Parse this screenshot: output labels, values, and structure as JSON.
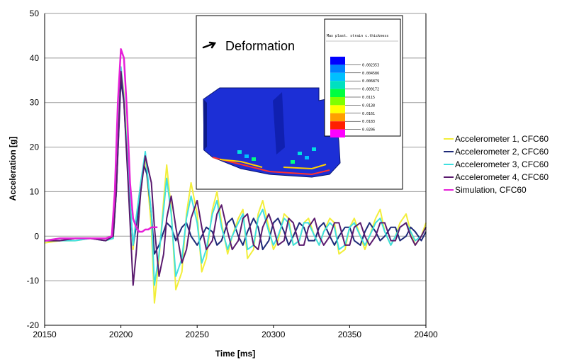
{
  "chart_data": {
    "type": "line",
    "xlabel": "Time [ms]",
    "ylabel": "Acceleration [g]",
    "xlim": [
      20150,
      20400
    ],
    "ylim": [
      -20,
      50
    ],
    "x_ticks": [
      20150,
      20200,
      20250,
      20300,
      20350,
      20400
    ],
    "y_ticks": [
      -20,
      -10,
      0,
      10,
      20,
      30,
      40,
      50
    ],
    "grid": "horizontal",
    "legend_position": "right",
    "series": [
      {
        "name": "Accelerometer 1, CFC60",
        "color": "#f2ee3a",
        "x": [
          20150,
          20160,
          20170,
          20180,
          20190,
          20195,
          20197,
          20200,
          20202,
          20205,
          20208,
          20210,
          20213,
          20216,
          20220,
          20222,
          20225,
          20228,
          20230,
          20233,
          20236,
          20240,
          20243,
          20246,
          20250,
          20253,
          20256,
          20260,
          20263,
          20266,
          20270,
          20273,
          20277,
          20280,
          20283,
          20287,
          20290,
          20293,
          20297,
          20300,
          20303,
          20307,
          20310,
          20313,
          20317,
          20320,
          20323,
          20327,
          20330,
          20333,
          20337,
          20340,
          20343,
          20347,
          20350,
          20353,
          20357,
          20360,
          20363,
          20367,
          20370,
          20373,
          20377,
          20380,
          20383,
          20387,
          20390,
          20393,
          20397,
          20400
        ],
        "y": [
          -1.5,
          -1,
          -1,
          -0.5,
          -1,
          -0.5,
          10,
          38,
          32,
          14,
          -3,
          4,
          12,
          18,
          2,
          -15,
          -5,
          8,
          16,
          6,
          -12,
          -8,
          5,
          12,
          5,
          -8,
          -5,
          6,
          10,
          3,
          -4,
          0,
          4,
          6,
          -5,
          -3,
          5,
          8,
          2,
          -3,
          -1,
          5,
          4,
          -2,
          -1,
          3,
          4,
          0,
          -2,
          1,
          4,
          3,
          -4,
          -3,
          2,
          4,
          0,
          -3,
          0,
          4,
          6,
          1,
          -2,
          0,
          3,
          5,
          1,
          -2,
          0,
          3
        ]
      },
      {
        "name": "Accelerometer 2, CFC60",
        "color": "#1e2a78",
        "x": [
          20150,
          20160,
          20170,
          20180,
          20190,
          20195,
          20197,
          20200,
          20202,
          20205,
          20208,
          20210,
          20213,
          20215,
          20217,
          20220,
          20222,
          20225,
          20228,
          20230,
          20233,
          20236,
          20240,
          20243,
          20246,
          20250,
          20253,
          20256,
          20260,
          20263,
          20266,
          20270,
          20273,
          20277,
          20280,
          20283,
          20287,
          20290,
          20293,
          20297,
          20300,
          20303,
          20307,
          20310,
          20313,
          20317,
          20320,
          20323,
          20327,
          20330,
          20333,
          20337,
          20340,
          20343,
          20347,
          20350,
          20353,
          20357,
          20360,
          20363,
          20367,
          20370,
          20373,
          20377,
          20380,
          20383,
          20387,
          20390,
          20393,
          20397,
          20400
        ],
        "y": [
          -1,
          -1,
          -0.5,
          -0.5,
          -1,
          0,
          10,
          35,
          30,
          12,
          -2,
          2,
          10,
          16,
          14,
          5,
          -4,
          -2,
          1,
          3,
          2,
          -1,
          2,
          3,
          0,
          -2,
          0,
          2,
          1,
          -2,
          -1,
          3,
          4,
          0,
          -2,
          1,
          4,
          2,
          -3,
          -1,
          3,
          4,
          1,
          -2,
          0,
          3,
          2,
          -1,
          -1,
          2,
          3,
          0,
          -2,
          0,
          2,
          2,
          -1,
          -2,
          1,
          3,
          1,
          -1,
          0,
          2,
          2,
          -1,
          0,
          2,
          1,
          -1,
          1
        ]
      },
      {
        "name": "Accelerometer 3, CFC60",
        "color": "#3fe0e0",
        "x": [
          20150,
          20160,
          20170,
          20180,
          20190,
          20195,
          20197,
          20200,
          20202,
          20205,
          20208,
          20210,
          20213,
          20216,
          20220,
          20222,
          20225,
          20228,
          20230,
          20233,
          20236,
          20240,
          20243,
          20246,
          20250,
          20253,
          20256,
          20260,
          20263,
          20266,
          20270,
          20273,
          20277,
          20280,
          20283,
          20287,
          20290,
          20293,
          20297,
          20300,
          20303,
          20307,
          20310,
          20313,
          20317,
          20320,
          20323,
          20327,
          20330,
          20333,
          20337,
          20340,
          20343,
          20347,
          20350,
          20353,
          20357,
          20360,
          20363,
          20367,
          20370,
          20373,
          20377,
          20380,
          20383,
          20387,
          20390,
          20393,
          20397,
          20400
        ],
        "y": [
          -1,
          -1,
          -1,
          -0.5,
          -1,
          -0.5,
          10,
          38,
          31,
          13,
          -2,
          4,
          12,
          19,
          5,
          -11,
          -4,
          6,
          13,
          5,
          -9,
          -5,
          4,
          9,
          3,
          -6,
          -3,
          5,
          8,
          2,
          -3,
          0,
          3,
          5,
          -3,
          -2,
          4,
          6,
          1,
          -2,
          0,
          4,
          3,
          -2,
          -1,
          3,
          3,
          0,
          -2,
          1,
          3,
          2,
          -3,
          -2,
          2,
          3,
          0,
          -2,
          0,
          3,
          4,
          1,
          -2,
          0,
          2,
          3,
          1,
          -1,
          0,
          2
        ]
      },
      {
        "name": "Accelerometer 4, CFC60",
        "color": "#5a1a6e",
        "x": [
          20150,
          20160,
          20170,
          20180,
          20190,
          20195,
          20197,
          20200,
          20202,
          20205,
          20208,
          20210,
          20213,
          20216,
          20220,
          20222,
          20225,
          20228,
          20230,
          20233,
          20236,
          20240,
          20243,
          20246,
          20250,
          20253,
          20256,
          20260,
          20263,
          20266,
          20270,
          20273,
          20277,
          20280,
          20283,
          20287,
          20290,
          20293,
          20297,
          20300,
          20303,
          20307,
          20310,
          20313,
          20317,
          20320,
          20323,
          20327,
          20330,
          20333,
          20337,
          20340,
          20343,
          20347,
          20350,
          20353,
          20357,
          20360,
          20363,
          20367,
          20370,
          20373,
          20377,
          20380,
          20383,
          20387,
          20390,
          20393,
          20397,
          20400
        ],
        "y": [
          -1,
          -1,
          -0.5,
          -0.5,
          -1,
          0,
          10,
          37,
          30,
          10,
          -11,
          -4,
          10,
          18,
          12,
          2,
          -9,
          -4,
          4,
          9,
          2,
          -6,
          -3,
          4,
          8,
          2,
          -3,
          -1,
          5,
          7,
          1,
          -3,
          -1,
          4,
          5,
          -2,
          -3,
          2,
          5,
          2,
          -2,
          -1,
          4,
          3,
          -2,
          -2,
          2,
          4,
          0,
          -2,
          0,
          3,
          3,
          -2,
          -2,
          2,
          3,
          0,
          -2,
          0,
          3,
          3,
          -1,
          -1,
          2,
          3,
          0,
          -2,
          0,
          2
        ]
      },
      {
        "name": "Simulation, CFC60",
        "color": "#e620d8",
        "x": [
          20150,
          20160,
          20170,
          20180,
          20190,
          20194,
          20196,
          20198,
          20200,
          20202,
          20204,
          20206,
          20208,
          20210,
          20212,
          20214,
          20216,
          20218,
          20220,
          20222,
          20224
        ],
        "y": [
          -1,
          -0.5,
          -0.5,
          -0.5,
          -0.5,
          0,
          10,
          30,
          42,
          40,
          28,
          12,
          4,
          2,
          1,
          1,
          1.5,
          1.5,
          2,
          2,
          2
        ]
      }
    ]
  },
  "inset": {
    "title": "Deformation",
    "colorbar_title": "Max plast. strain c.thickness",
    "colorbar_labels": [
      "0.002353",
      "0.004586",
      "0.006879",
      "0.009172",
      "0.0115",
      "0.0138",
      "0.0161",
      "0.0183",
      "0.0206"
    ],
    "colorbar_colors": [
      "#0000ff",
      "#0080ff",
      "#00c0ff",
      "#00e0c0",
      "#00ff40",
      "#80ff00",
      "#ffff00",
      "#ffa000",
      "#ff2000",
      "#ff00ff"
    ]
  }
}
